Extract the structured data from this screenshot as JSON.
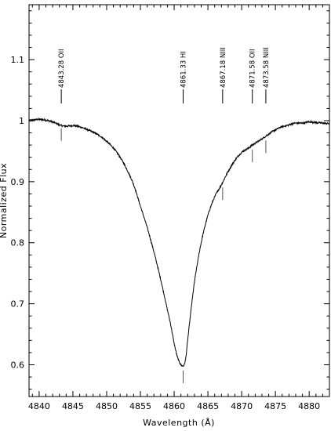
{
  "chart_data": {
    "type": "line",
    "title": "",
    "xlabel": "Wavelength (Å)",
    "ylabel": "Normalized Flux",
    "xlim": [
      4838.5,
      4883
    ],
    "ylim": [
      0.548,
      1.19
    ],
    "x_ticks": [
      4840,
      4845,
      4850,
      4855,
      4860,
      4865,
      4870,
      4875,
      4880
    ],
    "y_ticks": [
      0.6,
      0.7,
      0.8,
      0.9,
      1.0,
      1.1
    ],
    "y_tick_labels": [
      "0.6",
      "0.7",
      "0.8",
      "0.9",
      "1",
      "1.1"
    ],
    "grid": false,
    "series": [
      {
        "x": [
          4838.5,
          4840,
          4842,
          4843.28,
          4844,
          4845,
          4846,
          4847,
          4848,
          4849,
          4850,
          4851,
          4852,
          4853,
          4854,
          4855,
          4856,
          4857,
          4858,
          4859,
          4859.5,
          4860,
          4860.5,
          4861,
          4861.33,
          4861.7,
          4862,
          4862.5,
          4863,
          4863.5,
          4864,
          4865,
          4866,
          4867,
          4868,
          4869,
          4870,
          4871,
          4871.58,
          4872,
          4873,
          4874,
          4875,
          4876,
          4877,
          4878,
          4879,
          4880,
          4881,
          4882,
          4883
        ],
        "y": [
          1.0,
          1.002,
          0.998,
          0.992,
          0.991,
          0.992,
          0.99,
          0.986,
          0.981,
          0.975,
          0.966,
          0.955,
          0.94,
          0.92,
          0.895,
          0.86,
          0.825,
          0.785,
          0.74,
          0.69,
          0.665,
          0.635,
          0.612,
          0.6,
          0.598,
          0.61,
          0.64,
          0.69,
          0.735,
          0.77,
          0.8,
          0.845,
          0.875,
          0.895,
          0.917,
          0.935,
          0.948,
          0.955,
          0.96,
          0.963,
          0.97,
          0.978,
          0.985,
          0.99,
          0.993,
          0.996,
          0.996,
          0.998,
          0.997,
          0.996,
          0.995
        ]
      }
    ],
    "annotations": [
      {
        "label": "4843.28 OII",
        "x": 4843.28,
        "tick_bottom": 0.967
      },
      {
        "label": "4861.33 HI",
        "x": 4861.33,
        "tick_bottom": 0.57
      },
      {
        "label": "4867.18 NIII",
        "x": 4867.18,
        "tick_bottom": 0.87
      },
      {
        "label": "4871.58 OII",
        "x": 4871.58,
        "tick_bottom": 0.932
      },
      {
        "label": "4873.58 NIII",
        "x": 4873.58,
        "tick_bottom": 0.947
      }
    ]
  }
}
